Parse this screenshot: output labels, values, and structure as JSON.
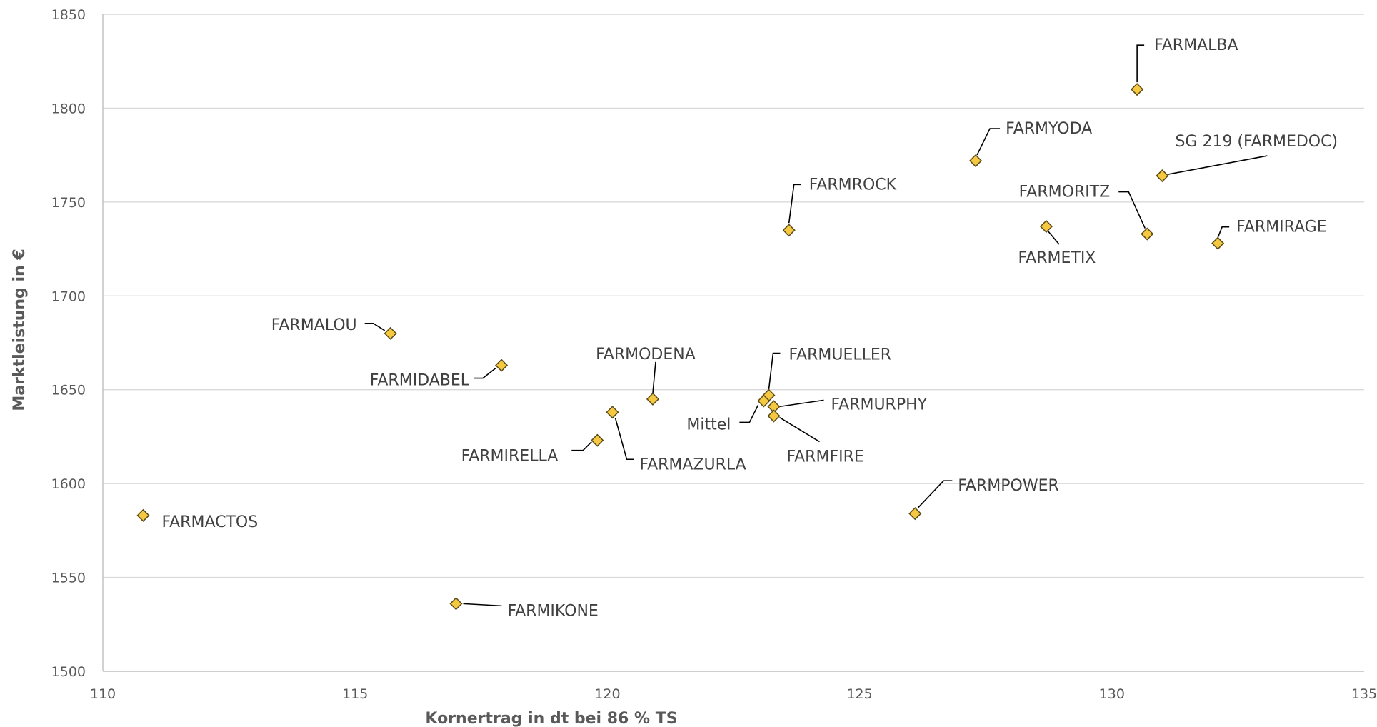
{
  "chart_data": {
    "type": "scatter",
    "xlabel": "Kornertrag in dt bei 86 % TS",
    "ylabel": "Marktleistung in €",
    "xlim": [
      110,
      135
    ],
    "ylim": [
      1500,
      1850
    ],
    "x_ticks": [
      110,
      115,
      120,
      125,
      130,
      135
    ],
    "y_ticks": [
      1500,
      1550,
      1600,
      1650,
      1700,
      1750,
      1800,
      1850
    ],
    "grid": "horizontal",
    "marker": "diamond",
    "marker_color": "#f5c842",
    "points": [
      {
        "name": "FARMALBA",
        "x": 130.5,
        "y": 1810
      },
      {
        "name": "FARMYODA",
        "x": 127.3,
        "y": 1772
      },
      {
        "name": "SG 219 (FARMEDOC)",
        "x": 131.0,
        "y": 1764
      },
      {
        "name": "FARMROCK",
        "x": 123.6,
        "y": 1735
      },
      {
        "name": "FARMORITZ",
        "x": 130.7,
        "y": 1733
      },
      {
        "name": "FARMETIX",
        "x": 128.7,
        "y": 1737
      },
      {
        "name": "FARMIRAGE",
        "x": 132.1,
        "y": 1728
      },
      {
        "name": "FARMALOU",
        "x": 115.7,
        "y": 1680
      },
      {
        "name": "FARMIDABEL",
        "x": 117.9,
        "y": 1663
      },
      {
        "name": "FARMODENA",
        "x": 120.9,
        "y": 1645
      },
      {
        "name": "FARMUELLER",
        "x": 123.2,
        "y": 1647
      },
      {
        "name": "Mittel",
        "x": 123.1,
        "y": 1644
      },
      {
        "name": "FARMURPHY",
        "x": 123.3,
        "y": 1641
      },
      {
        "name": "FARMFIRE",
        "x": 123.3,
        "y": 1636
      },
      {
        "name": "FARMAZURLA",
        "x": 120.1,
        "y": 1638
      },
      {
        "name": "FARMIRELLA",
        "x": 119.8,
        "y": 1623
      },
      {
        "name": "FARMPOWER",
        "x": 126.1,
        "y": 1584
      },
      {
        "name": "FARMACTOS",
        "x": 110.8,
        "y": 1583
      },
      {
        "name": "FARMIKONE",
        "x": 117.0,
        "y": 1536
      }
    ]
  }
}
